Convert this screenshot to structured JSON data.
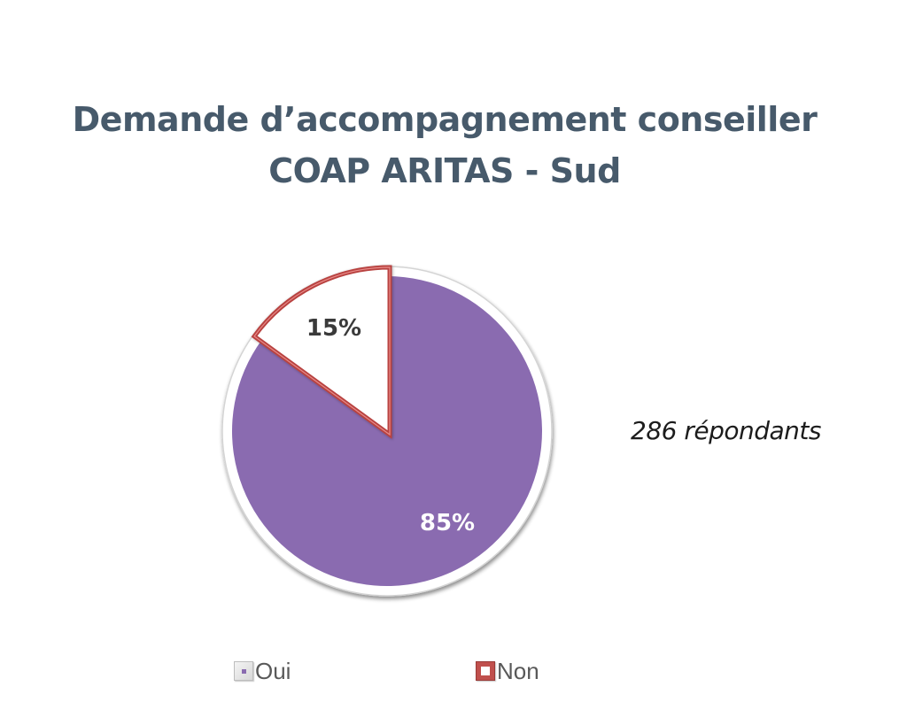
{
  "chart_data": {
    "type": "pie",
    "title": "Demande d’accompagnement conseiller COAP ARITAS - Sud",
    "title_lines": [
      "Demande d’accompagnement conseiller",
      "COAP ARITAS - Sud"
    ],
    "categories": [
      "Oui",
      "Non"
    ],
    "values": [
      85,
      15
    ],
    "unit": "%",
    "data_labels": [
      "85%",
      "15%"
    ],
    "colors": {
      "Oui": "#8a6bb0",
      "Non": "#ffffff",
      "Non_border": "#b8423f"
    },
    "start_angle": "top (12 o'clock)",
    "direction": "clockwise from Oui",
    "legend": {
      "position": "bottom",
      "entries": [
        "Oui",
        "Non"
      ]
    },
    "annotation": "286 répondants"
  },
  "title": {
    "line1": "Demande d’accompagnement conseiller",
    "line2": "COAP ARITAS - Sud"
  },
  "annotation": {
    "text": "286 répondants"
  },
  "legend": {
    "items": [
      {
        "label": "Oui",
        "color": "#8a6bb0"
      },
      {
        "label": "Non",
        "color": "#c0504d"
      }
    ]
  }
}
